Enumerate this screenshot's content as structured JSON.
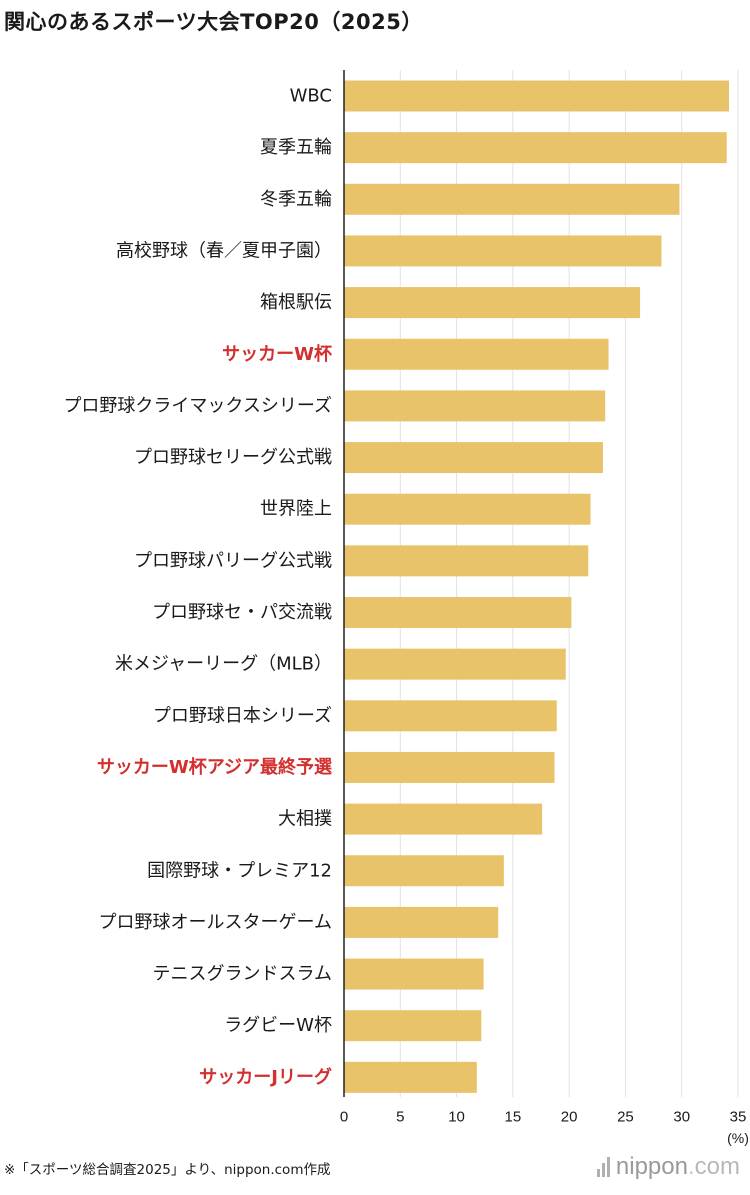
{
  "title": "関心のあるスポーツ大会TOP20（2025）",
  "footnote": "※「スポーツ総合調査2025」より、nippon.com作成",
  "logo": {
    "name": "nippon",
    "dot": ".",
    "suffix": "com"
  },
  "colors": {
    "bar": "#E8C36A",
    "highlight_label": "#D32F2F",
    "label": "#1a1a1a",
    "grid": "#e2e2e2",
    "axis": "#222222"
  },
  "chart_data": {
    "type": "bar",
    "orientation": "horizontal",
    "title": "関心のあるスポーツ大会TOP20（2025）",
    "xlabel": "(%)",
    "xlim": [
      0,
      35
    ],
    "xticks": [
      0,
      5,
      10,
      15,
      20,
      25,
      30,
      35
    ],
    "grid": true,
    "categories": [
      "WBC",
      "夏季五輪",
      "冬季五輪",
      "高校野球（春／夏甲子園）",
      "箱根駅伝",
      "サッカーW杯",
      "プロ野球クライマックスシリーズ",
      "プロ野球セリーグ公式戦",
      "世界陸上",
      "プロ野球パリーグ公式戦",
      "プロ野球セ・パ交流戦",
      "米メジャーリーグ（MLB）",
      "プロ野球日本シリーズ",
      "サッカーW杯アジア最終予選",
      "大相撲",
      "国際野球・プレミア12",
      "プロ野球オールスターゲーム",
      "テニスグランドスラム",
      "ラグビーW杯",
      "サッカーJリーグ"
    ],
    "values": [
      34.2,
      34.0,
      29.8,
      28.2,
      26.3,
      23.5,
      23.2,
      23.0,
      21.9,
      21.7,
      20.2,
      19.7,
      18.9,
      18.7,
      17.6,
      14.2,
      13.7,
      12.4,
      12.2,
      11.8
    ],
    "highlighted": [
      "サッカーW杯",
      "サッカーW杯アジア最終予選",
      "サッカーJリーグ"
    ]
  }
}
